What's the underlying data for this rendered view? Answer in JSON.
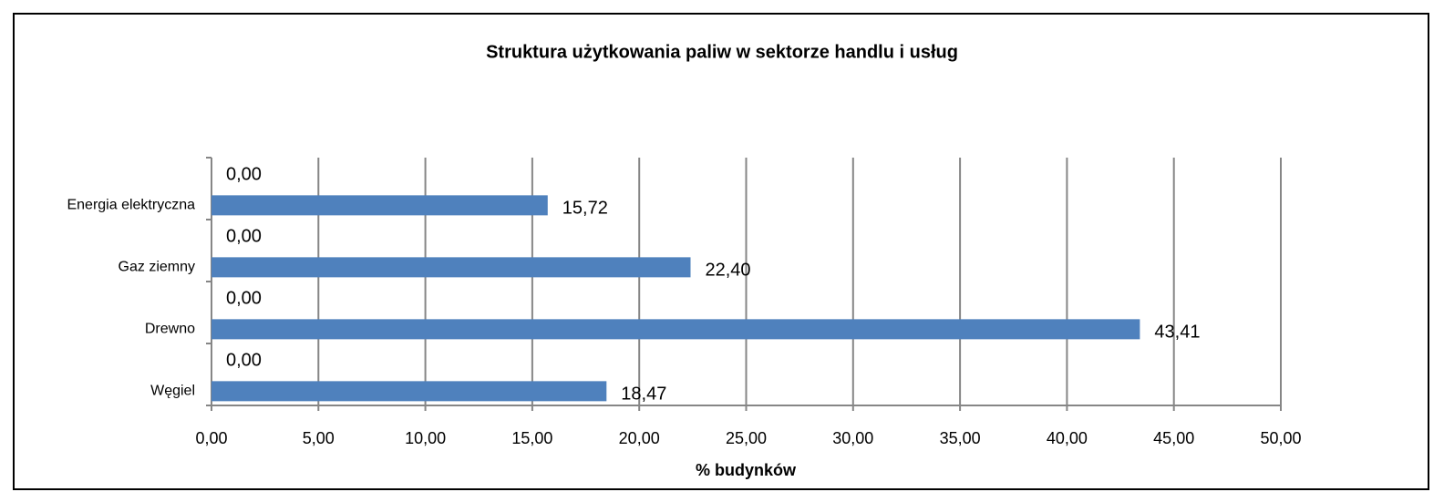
{
  "chart_data": {
    "type": "hbar",
    "title": "Struktura użytkowania paliw w sektorze handlu i usług",
    "x_label": "% budynków",
    "categories": [
      "Energia elektryczna",
      "Gaz ziemny",
      "Drewno",
      "Węgiel"
    ],
    "series": [
      {
        "values": [
          0,
          0,
          0,
          0
        ],
        "value_labels": [
          "0,00",
          "0,00",
          "0,00",
          "0,00"
        ]
      },
      {
        "color": "#4f81bd",
        "values": [
          15.72,
          22.4,
          43.41,
          18.47
        ],
        "value_labels": [
          "15,72",
          "22,40",
          "43,41",
          "18,47"
        ]
      }
    ],
    "xlim": [
      0,
      50
    ],
    "xticks": [
      {
        "value": 0,
        "label": "0,00"
      },
      {
        "value": 5,
        "label": "5,00"
      },
      {
        "value": 10,
        "label": "10,00"
      },
      {
        "value": 15,
        "label": "15,00"
      },
      {
        "value": 20,
        "label": "20,00"
      },
      {
        "value": 25,
        "label": "25,00"
      },
      {
        "value": 30,
        "label": "30,00"
      },
      {
        "value": 35,
        "label": "35,00"
      },
      {
        "value": 40,
        "label": "40,00"
      },
      {
        "value": 45,
        "label": "45,00"
      },
      {
        "value": 50,
        "label": "50,00"
      }
    ],
    "grid": true
  }
}
